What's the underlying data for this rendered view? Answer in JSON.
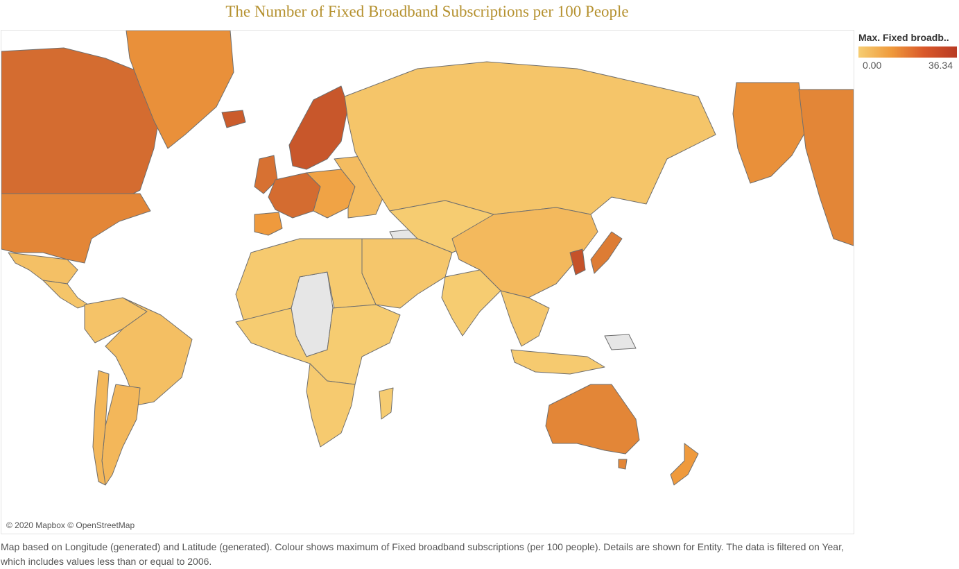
{
  "title": "The Number of Fixed Broadband Subscriptions per 100 People",
  "map": {
    "copyright": "© 2020 Mapbox © OpenStreetMap",
    "color_scale": {
      "low": "#f6cd72",
      "mid": "#ef9a3c",
      "high": "#b83b24",
      "no_data": "#e6e6e6"
    },
    "region_levels": {
      "canada": 27.0,
      "greenland": 20.0,
      "usa": 22.0,
      "alaska": 20.0,
      "mexico": 4.5,
      "central_america": 3.0,
      "south_america_north": 3.5,
      "brazil": 5.0,
      "argentina": 8.0,
      "chile": 8.0,
      "iceland": 30.0,
      "scandinavia": 31.0,
      "uk": 26.0,
      "western_europe": 27.0,
      "iberia": 18.0,
      "central_europe": 15.0,
      "eastern_europe": 6.0,
      "russia": 3.0,
      "middle_east": 2.5,
      "north_africa": 1.0,
      "sub_saharan_africa": 0.5,
      "southern_africa": 1.0,
      "central_asia": 0.5,
      "china": 7.0,
      "korea": 32.0,
      "japan": 24.0,
      "india": 0.5,
      "southeast_asia": 2.0,
      "indonesia": 1.0,
      "australia": 22.0,
      "new_zealand": 18.0
    }
  },
  "legend": {
    "title": "Max. Fixed broadb..",
    "min_label": "0.00",
    "max_label": "36.34",
    "min": 0.0,
    "max": 36.34
  },
  "caption": "Map based on Longitude (generated) and Latitude (generated).  Colour shows maximum of Fixed broadband subscriptions (per 100 people).  Details are shown for Entity. The data is filtered on Year, which includes values less than or equal to 2006."
}
